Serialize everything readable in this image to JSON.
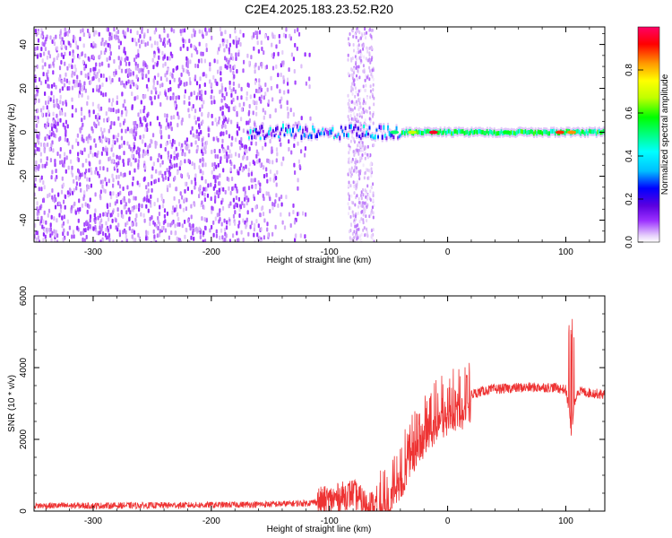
{
  "title": "C2E4.2025.183.23.52.R20",
  "colors": {
    "snr_line": "#ee3333",
    "axis": "#000000",
    "background": "#ffffff"
  },
  "chart_data": [
    {
      "type": "heatmap",
      "xlabel": "Height of straight line (km)",
      "ylabel": "Frequency (Hz)",
      "xlim": [
        -350,
        133
      ],
      "ylim": [
        -50,
        48
      ],
      "x_ticks": [
        -300,
        -200,
        -100,
        0,
        100
      ],
      "y_ticks": [
        -40,
        -20,
        0,
        20,
        40
      ],
      "colorbar": {
        "label": "Normalized spectral amplitude",
        "range": [
          0,
          1
        ],
        "ticks": [
          "0.0",
          "0.2",
          "0.4",
          "0.6",
          "0.8"
        ],
        "colormap": [
          "#ffffff",
          "#d8b4f8",
          "#9b30ff",
          "#5a00e0",
          "#0000ff",
          "#00bfff",
          "#00ffff",
          "#00ff80",
          "#00ff00",
          "#bfff00",
          "#ffff00",
          "#ff9900",
          "#ff0000",
          "#ff0066"
        ]
      },
      "features": [
        {
          "name": "broadband noise",
          "x_range": [
            -350,
            -130
          ],
          "amplitude": 0.1
        },
        {
          "name": "diffuse noise column",
          "x_range": [
            -85,
            -63
          ],
          "amplitude": 0.08
        },
        {
          "name": "carrier line",
          "x_range": [
            -170,
            133
          ],
          "frequency_hz": 0,
          "peak_amplitude": 1.0
        }
      ]
    },
    {
      "type": "line",
      "xlabel": "Height of straight line (km)",
      "ylabel": "SNR (10 * v/v)",
      "xlim": [
        -350,
        133
      ],
      "ylim": [
        0,
        6000
      ],
      "x_ticks": [
        -300,
        -200,
        -100,
        0,
        100
      ],
      "y_ticks": [
        0,
        2000,
        4000,
        6000
      ],
      "series": [
        {
          "x": [
            -350,
            -300,
            -200,
            -150,
            -120,
            -100,
            -90,
            -80,
            -70,
            -60,
            -50,
            -45,
            -40,
            -35,
            -30,
            -25,
            -20,
            -15,
            -10,
            -5,
            0,
            10,
            20,
            30,
            40,
            50,
            60,
            70,
            80,
            90,
            100,
            103,
            105,
            107,
            110,
            120,
            133
          ],
          "y": [
            150,
            150,
            170,
            190,
            220,
            300,
            400,
            500,
            200,
            150,
            500,
            900,
            1200,
            1500,
            1900,
            2100,
            2400,
            2600,
            2800,
            2900,
            3000,
            3150,
            3250,
            3350,
            3400,
            3420,
            3440,
            3450,
            3450,
            3450,
            3380,
            2800,
            2000,
            3000,
            3350,
            3300,
            3250
          ]
        }
      ]
    }
  ]
}
